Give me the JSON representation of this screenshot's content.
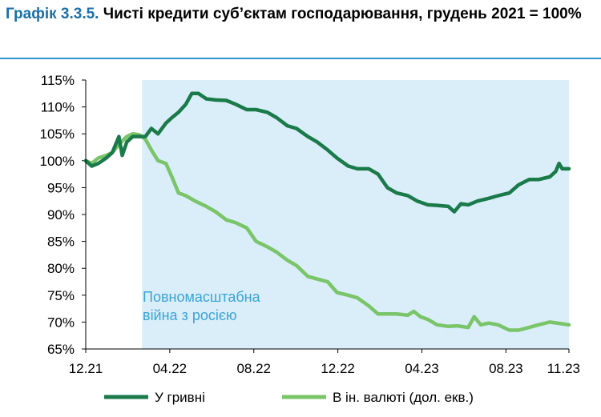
{
  "title": {
    "number": "Графік 3.3.5.",
    "text": "Чисті кредити суб’єктам господарювання, грудень 2021 = 100%"
  },
  "colors": {
    "uah": "#1a7a4a",
    "fx": "#7ac46a",
    "shade": "#d9eef8",
    "annotation": "#3ba3d8",
    "rule": "#2d93d1"
  },
  "chart_data": {
    "type": "line",
    "x_ticks": [
      "12.21",
      "04.22",
      "08.22",
      "12.22",
      "04.23",
      "08.23",
      "11.23"
    ],
    "y_ticks": [
      "65%",
      "70%",
      "75%",
      "80%",
      "85%",
      "90%",
      "95%",
      "100%",
      "105%",
      "110%",
      "115%"
    ],
    "ylim": [
      65,
      115
    ],
    "xlim": [
      "2021-12",
      "2023-11"
    ],
    "shaded_region": {
      "from": "2022-02-24",
      "to": "2023-11",
      "label_line1": "Повномасштабна",
      "label_line2": "війна з росією"
    },
    "series": [
      {
        "name": "У гривні",
        "points": [
          [
            "2021-12-01",
            100
          ],
          [
            "2021-12-10",
            99
          ],
          [
            "2021-12-20",
            99.5
          ],
          [
            "2022-01-01",
            100.5
          ],
          [
            "2022-01-10",
            101.5
          ],
          [
            "2022-01-20",
            104.5
          ],
          [
            "2022-01-25",
            101
          ],
          [
            "2022-02-01",
            103.5
          ],
          [
            "2022-02-10",
            104.5
          ],
          [
            "2022-02-20",
            104.5
          ],
          [
            "2022-03-01",
            104.5
          ],
          [
            "2022-03-10",
            106
          ],
          [
            "2022-03-20",
            105
          ],
          [
            "2022-04-01",
            107
          ],
          [
            "2022-04-10",
            108
          ],
          [
            "2022-04-20",
            109
          ],
          [
            "2022-05-01",
            110.5
          ],
          [
            "2022-05-10",
            112.5
          ],
          [
            "2022-05-20",
            112.5
          ],
          [
            "2022-06-01",
            111.5
          ],
          [
            "2022-06-15",
            111.3
          ],
          [
            "2022-07-01",
            111.2
          ],
          [
            "2022-07-15",
            110.5
          ],
          [
            "2022-08-01",
            109.5
          ],
          [
            "2022-08-15",
            109.5
          ],
          [
            "2022-09-01",
            109
          ],
          [
            "2022-09-15",
            108
          ],
          [
            "2022-10-01",
            106.5
          ],
          [
            "2022-10-15",
            106
          ],
          [
            "2022-11-01",
            104.5
          ],
          [
            "2022-11-15",
            103.5
          ],
          [
            "2022-12-01",
            102
          ],
          [
            "2022-12-15",
            100.5
          ],
          [
            "2023-01-01",
            99
          ],
          [
            "2023-01-15",
            98.5
          ],
          [
            "2023-02-01",
            98.5
          ],
          [
            "2023-02-15",
            97.5
          ],
          [
            "2023-03-01",
            95
          ],
          [
            "2023-03-15",
            94
          ],
          [
            "2023-04-01",
            93.5
          ],
          [
            "2023-04-15",
            92.5
          ],
          [
            "2023-05-01",
            91.8
          ],
          [
            "2023-05-15",
            91.7
          ],
          [
            "2023-06-01",
            91.5
          ],
          [
            "2023-06-10",
            90.5
          ],
          [
            "2023-06-20",
            92
          ],
          [
            "2023-07-01",
            91.8
          ],
          [
            "2023-07-15",
            92.5
          ],
          [
            "2023-08-01",
            93
          ],
          [
            "2023-08-15",
            93.5
          ],
          [
            "2023-09-01",
            94
          ],
          [
            "2023-09-15",
            95.5
          ],
          [
            "2023-10-01",
            96.5
          ],
          [
            "2023-10-15",
            96.5
          ],
          [
            "2023-11-01",
            97
          ],
          [
            "2023-11-10",
            98
          ],
          [
            "2023-11-15",
            99.5
          ],
          [
            "2023-11-20",
            98.5
          ],
          [
            "2023-11-30",
            98.5
          ]
        ]
      },
      {
        "name": "В ін. валюті (дол. екв.)",
        "points": [
          [
            "2021-12-01",
            100
          ],
          [
            "2021-12-10",
            99.5
          ],
          [
            "2021-12-20",
            100.5
          ],
          [
            "2022-01-01",
            101
          ],
          [
            "2022-01-10",
            101.5
          ],
          [
            "2022-01-20",
            103
          ],
          [
            "2022-02-01",
            104.5
          ],
          [
            "2022-02-10",
            105
          ],
          [
            "2022-02-20",
            104.8
          ],
          [
            "2022-03-01",
            104
          ],
          [
            "2022-03-10",
            102
          ],
          [
            "2022-03-20",
            100
          ],
          [
            "2022-04-01",
            99.5
          ],
          [
            "2022-04-10",
            97
          ],
          [
            "2022-04-20",
            94
          ],
          [
            "2022-05-01",
            93.5
          ],
          [
            "2022-05-15",
            92.5
          ],
          [
            "2022-06-01",
            91.5
          ],
          [
            "2022-06-15",
            90.5
          ],
          [
            "2022-07-01",
            89
          ],
          [
            "2022-07-15",
            88.5
          ],
          [
            "2022-08-01",
            87.5
          ],
          [
            "2022-08-15",
            85
          ],
          [
            "2022-09-01",
            84
          ],
          [
            "2022-09-15",
            83
          ],
          [
            "2022-10-01",
            81.5
          ],
          [
            "2022-10-15",
            80.5
          ],
          [
            "2022-11-01",
            78.5
          ],
          [
            "2022-11-15",
            78
          ],
          [
            "2022-12-01",
            77.5
          ],
          [
            "2022-12-15",
            75.5
          ],
          [
            "2023-01-01",
            75
          ],
          [
            "2023-01-15",
            74.5
          ],
          [
            "2023-02-01",
            73
          ],
          [
            "2023-02-15",
            71.5
          ],
          [
            "2023-03-01",
            71.5
          ],
          [
            "2023-03-15",
            71.5
          ],
          [
            "2023-04-01",
            71.3
          ],
          [
            "2023-04-10",
            72
          ],
          [
            "2023-04-20",
            71
          ],
          [
            "2023-05-01",
            70.5
          ],
          [
            "2023-05-15",
            69.5
          ],
          [
            "2023-06-01",
            69.2
          ],
          [
            "2023-06-15",
            69.3
          ],
          [
            "2023-07-01",
            69
          ],
          [
            "2023-07-10",
            71
          ],
          [
            "2023-07-20",
            69.5
          ],
          [
            "2023-08-01",
            69.8
          ],
          [
            "2023-08-15",
            69.5
          ],
          [
            "2023-09-01",
            68.5
          ],
          [
            "2023-09-15",
            68.5
          ],
          [
            "2023-10-01",
            69
          ],
          [
            "2023-10-15",
            69.5
          ],
          [
            "2023-11-01",
            70
          ],
          [
            "2023-11-30",
            69.5
          ]
        ]
      }
    ]
  }
}
